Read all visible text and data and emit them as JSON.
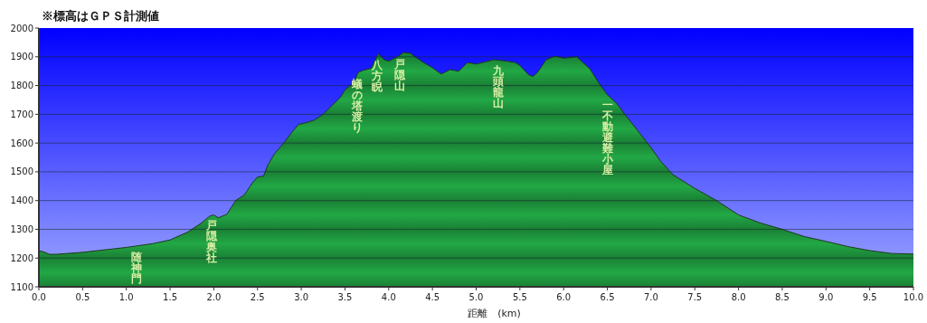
{
  "chart_data": {
    "type": "area",
    "title": "※標高はＧＰＳ計測値",
    "xlabel": "距離　(km)",
    "x": [
      0.0,
      0.05,
      0.12,
      0.2,
      0.5,
      1.0,
      1.3,
      1.5,
      1.7,
      1.85,
      1.95,
      2.0,
      2.05,
      2.15,
      2.25,
      2.35,
      2.45,
      2.5,
      2.57,
      2.62,
      2.7,
      2.8,
      2.9,
      2.97,
      3.05,
      3.15,
      3.25,
      3.35,
      3.45,
      3.5,
      3.6,
      3.65,
      3.7,
      3.8,
      3.88,
      3.95,
      4.0,
      4.1,
      4.17,
      4.25,
      4.3,
      4.4,
      4.5,
      4.6,
      4.7,
      4.8,
      4.9,
      5.0,
      5.1,
      5.2,
      5.35,
      5.45,
      5.5,
      5.6,
      5.65,
      5.7,
      5.8,
      5.9,
      6.0,
      6.15,
      6.3,
      6.4,
      6.5,
      6.6,
      6.7,
      6.85,
      7.0,
      7.1,
      7.25,
      7.5,
      7.75,
      8.0,
      8.25,
      8.5,
      8.75,
      9.0,
      9.25,
      9.5,
      9.75,
      10.0
    ],
    "values": [
      1225,
      1222,
      1213,
      1213,
      1220,
      1237,
      1250,
      1263,
      1290,
      1320,
      1345,
      1350,
      1340,
      1352,
      1400,
      1420,
      1465,
      1482,
      1485,
      1525,
      1565,
      1600,
      1640,
      1665,
      1670,
      1680,
      1700,
      1730,
      1760,
      1785,
      1810,
      1845,
      1852,
      1860,
      1910,
      1890,
      1885,
      1900,
      1915,
      1912,
      1900,
      1880,
      1862,
      1840,
      1855,
      1850,
      1880,
      1875,
      1882,
      1890,
      1885,
      1880,
      1870,
      1837,
      1832,
      1845,
      1890,
      1902,
      1895,
      1900,
      1858,
      1810,
      1768,
      1740,
      1700,
      1642,
      1584,
      1540,
      1490,
      1442,
      1400,
      1350,
      1322,
      1300,
      1275,
      1258,
      1240,
      1226,
      1216,
      1214
    ],
    "color": "#22a845",
    "xlim": [
      0,
      10
    ],
    "ylim": [
      1100,
      2000
    ],
    "xticks": [
      {
        "value": 0,
        "label": "0.0"
      },
      {
        "value": 0.5,
        "label": "0.5"
      },
      {
        "value": 1,
        "label": "1.0"
      },
      {
        "value": 1.5,
        "label": "1.5"
      },
      {
        "value": 2,
        "label": "2.0"
      },
      {
        "value": 2.5,
        "label": "2.5"
      },
      {
        "value": 3,
        "label": "3.0"
      },
      {
        "value": 3.5,
        "label": "3.5"
      },
      {
        "value": 4,
        "label": "4.0"
      },
      {
        "value": 4.5,
        "label": "4.5"
      },
      {
        "value": 5,
        "label": "5.0"
      },
      {
        "value": 5.5,
        "label": "5.5"
      },
      {
        "value": 6,
        "label": "6.0"
      },
      {
        "value": 6.5,
        "label": "6.5"
      },
      {
        "value": 7,
        "label": "7.0"
      },
      {
        "value": 7.5,
        "label": "7.5"
      },
      {
        "value": 8,
        "label": "8.0"
      },
      {
        "value": 8.5,
        "label": "8.5"
      },
      {
        "value": 9,
        "label": "9.0"
      },
      {
        "value": 9.5,
        "label": "9.5"
      },
      {
        "value": 10,
        "label": "10.0"
      }
    ],
    "yticks": [
      1100,
      1200,
      1300,
      1400,
      1500,
      1600,
      1700,
      1800,
      1900,
      2000
    ],
    "grid": "y",
    "annotations": [
      {
        "text": "随神門",
        "x": 1.12,
        "y": 1240
      },
      {
        "text": "戸隠奥社",
        "x": 1.98,
        "y": 1348
      },
      {
        "text": "蟻の塔渡り",
        "x": 3.64,
        "y": 1840
      },
      {
        "text": "八方睨",
        "x": 3.87,
        "y": 1905
      },
      {
        "text": "戸隠山",
        "x": 4.13,
        "y": 1908
      },
      {
        "text": "九頭龍山",
        "x": 5.25,
        "y": 1888
      },
      {
        "text": "一不動避難小屋",
        "x": 6.5,
        "y": 1768
      }
    ]
  }
}
